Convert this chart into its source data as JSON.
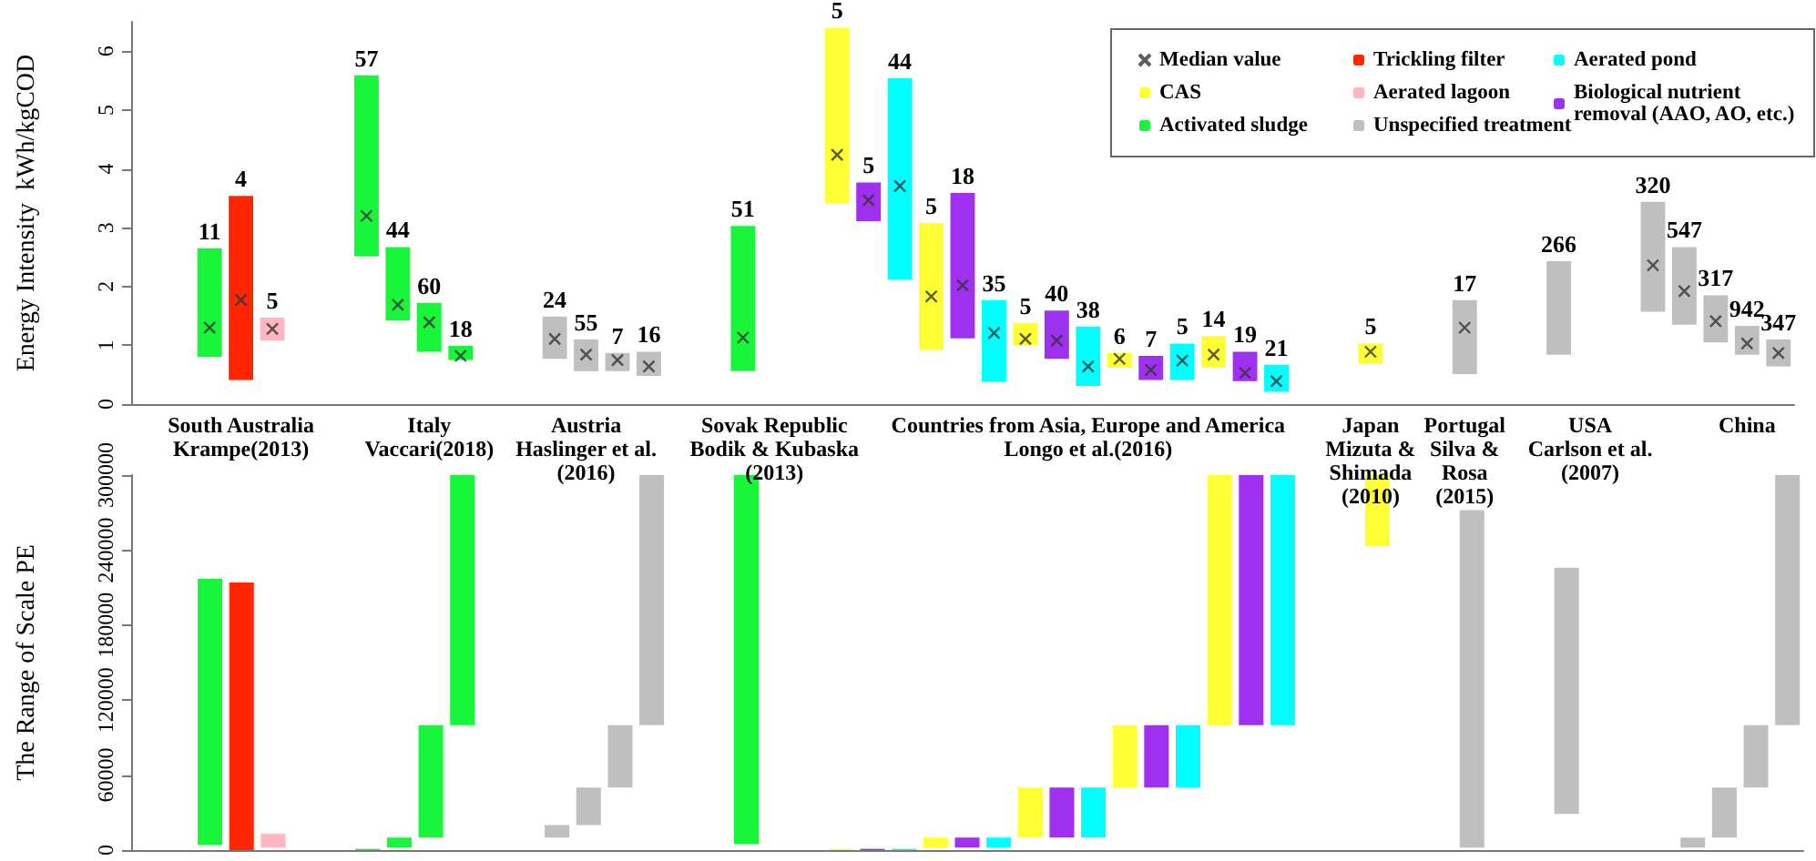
{
  "chart_data": [
    {
      "type": "bar",
      "ylabel": "Energy Intensity  kWh/kgCOD",
      "ylim": [
        0,
        6.5
      ],
      "yticks": [
        0,
        1,
        2,
        3,
        4,
        5,
        6
      ],
      "grid": false,
      "legend": "top right",
      "annotations": [
        "11",
        "4",
        "5",
        "57",
        "44",
        "60",
        "18",
        "24",
        "55",
        "7",
        "16",
        "51",
        "5",
        "5",
        "44",
        "5",
        "18",
        "35",
        "5",
        "40",
        "38",
        "6",
        "7",
        "5",
        "14",
        "19",
        "21",
        "5",
        "17",
        "266",
        "320",
        "547",
        "317",
        "942",
        "347"
      ],
      "categories": [
        null,
        null,
        null,
        "South Australia\nKrampe(2013)",
        null,
        null,
        null,
        null,
        null,
        "Italy\nVaccari(2018)",
        null,
        null,
        null,
        null,
        "Austria\nHaslinger et al.\n(2016)",
        null,
        null,
        null,
        null,
        null,
        "Sovak Republic\nBodik & Kubaska\n(2013)",
        null,
        null,
        null,
        null,
        null,
        null,
        null,
        null,
        null,
        "Countries from Asia, Europe and America\nLongo et al.(2016)",
        null,
        null,
        null,
        null,
        null,
        null,
        null,
        null,
        "Japan\nMizuta &\nShimada\n(2010)",
        null,
        null,
        "Portugal\nSilva &\nRosa\n(2015)",
        null,
        null,
        null,
        "USA\nCarlson et al.\n(2007)",
        null,
        null,
        null,
        null,
        "China",
        null
      ],
      "series": [
        {
          "name": "Median value",
          "type": "scatter",
          "marker": "cross",
          "color": "#333333",
          "values": [
            null,
            null,
            1.3,
            1.77,
            1.28,
            null,
            null,
            3.2,
            1.69,
            1.39,
            0.82,
            null,
            null,
            1.11,
            0.84,
            0.75,
            0.64,
            null,
            null,
            1.13,
            null,
            null,
            4.24,
            3.47,
            3.71,
            1.83,
            2.02,
            1.21,
            1.11,
            1.08,
            0.64,
            0.77,
            0.58,
            0.74,
            0.84,
            0.53,
            0.39,
            null,
            null,
            0.89,
            null,
            null,
            1.3,
            null,
            null,
            null,
            null,
            null,
            2.36,
            1.92,
            1.41,
            1.03,
            0.87
          ]
        },
        {
          "name": "Trickling filter",
          "color": "#ff2600",
          "values": [
            null,
            null,
            null,
            3.13,
            null,
            null,
            null,
            null,
            null,
            null,
            null,
            null,
            null,
            null,
            null,
            null,
            null,
            null,
            null,
            null,
            null,
            null,
            null,
            null,
            null,
            null,
            null,
            null,
            null,
            null,
            null,
            null,
            null,
            null,
            null,
            null,
            null,
            null,
            null,
            null,
            null,
            null,
            null,
            null,
            null,
            null,
            null,
            null,
            null,
            null,
            null,
            null,
            null
          ],
          "base": [
            null,
            null,
            null,
            0.41,
            null,
            null,
            null,
            null,
            null,
            null,
            null,
            null,
            null,
            null,
            null,
            null,
            null,
            null,
            null,
            null,
            null,
            null,
            null,
            null,
            null,
            null,
            null,
            null,
            null,
            null,
            null,
            null,
            null,
            null,
            null,
            null,
            null,
            null,
            null,
            null,
            null,
            null,
            null,
            null,
            null,
            null,
            null,
            null,
            null,
            null,
            null,
            null,
            null
          ]
        },
        {
          "name": "Aerated pond",
          "color": "#00ffff",
          "values": [
            null,
            null,
            null,
            null,
            null,
            null,
            null,
            null,
            null,
            null,
            null,
            null,
            null,
            null,
            null,
            null,
            null,
            null,
            null,
            null,
            null,
            null,
            null,
            null,
            3.42,
            null,
            null,
            1.39,
            null,
            null,
            1.01,
            null,
            null,
            0.62,
            null,
            null,
            0.46,
            null,
            null,
            null,
            null,
            null,
            null,
            null,
            null,
            null,
            null,
            null,
            null,
            null,
            null,
            null,
            null
          ],
          "base": [
            null,
            null,
            null,
            null,
            null,
            null,
            null,
            null,
            null,
            null,
            null,
            null,
            null,
            null,
            null,
            null,
            null,
            null,
            null,
            null,
            null,
            null,
            null,
            null,
            2.12,
            null,
            null,
            0.38,
            null,
            null,
            0.31,
            null,
            null,
            0.41,
            null,
            null,
            0.21,
            null,
            null,
            null,
            null,
            null,
            null,
            null,
            null,
            null,
            null,
            null,
            null,
            null,
            null,
            null,
            null
          ]
        },
        {
          "name": "CAS",
          "color": "#ffff33",
          "values": [
            null,
            null,
            null,
            null,
            null,
            null,
            null,
            null,
            null,
            null,
            null,
            null,
            null,
            null,
            null,
            null,
            null,
            null,
            null,
            null,
            null,
            null,
            2.98,
            null,
            null,
            2.16,
            null,
            null,
            0.38,
            null,
            null,
            0.25,
            null,
            null,
            0.54,
            null,
            null,
            null,
            null,
            0.34,
            null,
            null,
            null,
            null,
            null,
            null,
            null,
            null,
            null,
            null,
            null,
            null,
            null
          ],
          "base": [
            null,
            null,
            null,
            null,
            null,
            null,
            null,
            null,
            null,
            null,
            null,
            null,
            null,
            null,
            null,
            null,
            null,
            null,
            null,
            null,
            null,
            null,
            3.42,
            null,
            null,
            0.92,
            null,
            null,
            1.0,
            null,
            null,
            0.62,
            null,
            null,
            0.62,
            null,
            null,
            null,
            null,
            0.69,
            null,
            null,
            null,
            null,
            null,
            null,
            null,
            null,
            null,
            null,
            null,
            null,
            null
          ]
        },
        {
          "name": "Aerated lagoon",
          "color": "#ffb6c1",
          "values": [
            null,
            null,
            null,
            null,
            0.39,
            null,
            null,
            null,
            null,
            null,
            null,
            null,
            null,
            null,
            null,
            null,
            null,
            null,
            null,
            null,
            null,
            null,
            null,
            null,
            null,
            null,
            null,
            null,
            null,
            null,
            null,
            null,
            null,
            null,
            null,
            null,
            null,
            null,
            null,
            null,
            null,
            null,
            null,
            null,
            null,
            null,
            null,
            null,
            null,
            null,
            null,
            null,
            null
          ],
          "base": [
            null,
            null,
            null,
            null,
            1.08,
            null,
            null,
            null,
            null,
            null,
            null,
            null,
            null,
            null,
            null,
            null,
            null,
            null,
            null,
            null,
            null,
            null,
            null,
            null,
            null,
            null,
            null,
            null,
            null,
            null,
            null,
            null,
            null,
            null,
            null,
            null,
            null,
            null,
            null,
            null,
            null,
            null,
            null,
            null,
            null,
            null,
            null,
            null,
            null,
            null,
            null,
            null,
            null
          ]
        },
        {
          "name": "Biological nutrient removal (AAO, AO, etc.)",
          "color": "#a030f0",
          "values": [
            null,
            null,
            null,
            null,
            null,
            null,
            null,
            null,
            null,
            null,
            null,
            null,
            null,
            null,
            null,
            null,
            null,
            null,
            null,
            null,
            null,
            null,
            null,
            0.66,
            null,
            null,
            2.47,
            null,
            null,
            0.82,
            null,
            null,
            0.41,
            null,
            null,
            0.5,
            null,
            null,
            null,
            null,
            null,
            null,
            null,
            null,
            null,
            null,
            null,
            null,
            null,
            null,
            null,
            null,
            null
          ],
          "base": [
            null,
            null,
            null,
            null,
            null,
            null,
            null,
            null,
            null,
            null,
            null,
            null,
            null,
            null,
            null,
            null,
            null,
            null,
            null,
            null,
            null,
            null,
            null,
            3.11,
            null,
            null,
            1.12,
            null,
            null,
            0.77,
            null,
            null,
            0.41,
            null,
            null,
            0.39,
            null,
            null,
            null,
            null,
            null,
            null,
            null,
            null,
            null,
            null,
            null,
            null,
            null,
            null,
            null,
            null,
            null
          ]
        },
        {
          "name": "Activated sludge",
          "color": "#19f53a",
          "values": [
            null,
            null,
            1.85,
            null,
            null,
            null,
            null,
            3.08,
            1.25,
            0.83,
            0.24,
            null,
            null,
            null,
            null,
            null,
            null,
            null,
            null,
            2.47,
            null,
            null,
            null,
            null,
            null,
            null,
            null,
            null,
            null,
            null,
            null,
            null,
            null,
            null,
            null,
            null,
            null,
            null,
            null,
            null,
            null,
            null,
            null,
            null,
            null,
            null,
            null,
            null,
            null,
            null,
            null,
            null,
            null
          ],
          "base": [
            null,
            null,
            0.8,
            null,
            null,
            null,
            null,
            2.51,
            1.42,
            0.89,
            0.75,
            null,
            null,
            null,
            null,
            null,
            null,
            null,
            null,
            0.56,
            null,
            null,
            null,
            null,
            null,
            null,
            null,
            null,
            null,
            null,
            null,
            null,
            null,
            null,
            null,
            null,
            null,
            null,
            null,
            null,
            null,
            null,
            null,
            null,
            null,
            null,
            null,
            null,
            null,
            null,
            null,
            null,
            null
          ]
        },
        {
          "name": "Unspecified treatment",
          "color": "#bfbfbf",
          "values": [
            null,
            null,
            null,
            null,
            null,
            null,
            null,
            null,
            null,
            null,
            null,
            null,
            null,
            0.72,
            0.54,
            0.31,
            0.41,
            null,
            null,
            null,
            null,
            null,
            null,
            null,
            null,
            null,
            null,
            null,
            null,
            null,
            null,
            null,
            null,
            null,
            null,
            null,
            null,
            null,
            null,
            null,
            null,
            null,
            1.26,
            null,
            null,
            1.59,
            null,
            null,
            1.87,
            1.32,
            0.8,
            0.49,
            0.46
          ],
          "base": [
            null,
            null,
            null,
            null,
            null,
            null,
            null,
            null,
            null,
            null,
            null,
            null,
            null,
            0.77,
            0.56,
            0.56,
            0.48,
            null,
            null,
            null,
            null,
            null,
            null,
            null,
            null,
            null,
            null,
            null,
            null,
            null,
            null,
            null,
            null,
            null,
            null,
            null,
            null,
            null,
            null,
            null,
            null,
            null,
            0.51,
            null,
            null,
            0.84,
            null,
            null,
            1.57,
            1.35,
            1.05,
            0.84,
            0.64
          ]
        }
      ]
    },
    {
      "type": "bar",
      "ylabel": "The Range of Scale PE",
      "ylim": [
        0,
        300000
      ],
      "yticks": [
        0,
        60000,
        120000,
        180000,
        240000,
        300000
      ],
      "grid": false,
      "tick_labels": "y",
      "categories": [
        null,
        null,
        null,
        null,
        null,
        null,
        null,
        null,
        null,
        null,
        null,
        null,
        null,
        null,
        null,
        null,
        null,
        null,
        null,
        null,
        null,
        null,
        null,
        null,
        null,
        null,
        null,
        null,
        null,
        null,
        null,
        null,
        null,
        null,
        null,
        null,
        null,
        null,
        null,
        null,
        null,
        null,
        null,
        null,
        null,
        null,
        null,
        null,
        null,
        null,
        null,
        null,
        null
      ],
      "series": [
        {
          "color": "#ff2600",
          "values": [
            null,
            null,
            null,
            214000,
            null,
            null,
            null,
            null,
            null,
            null,
            null,
            null,
            null,
            null,
            null,
            null,
            null,
            null,
            null,
            null,
            null,
            null,
            null,
            null,
            null,
            null,
            null,
            null,
            null,
            null,
            null,
            null,
            null,
            null,
            null,
            null,
            null,
            null,
            null,
            null,
            null,
            null,
            null,
            null,
            null,
            null,
            null,
            null,
            null,
            null,
            null,
            null,
            null
          ],
          "base": [
            null,
            null,
            null,
            0,
            null,
            null,
            null,
            null,
            null,
            null,
            null,
            null,
            null,
            null,
            null,
            null,
            null,
            null,
            null,
            null,
            null,
            null,
            null,
            null,
            null,
            null,
            null,
            null,
            null,
            null,
            null,
            null,
            null,
            null,
            null,
            null,
            null,
            null,
            null,
            null,
            null,
            null,
            null,
            null,
            null,
            null,
            null,
            null,
            null,
            null,
            null,
            null,
            null
          ]
        },
        {
          "color": "#00ffff",
          "values": [
            null,
            null,
            null,
            null,
            null,
            null,
            null,
            null,
            null,
            null,
            null,
            null,
            null,
            null,
            null,
            null,
            null,
            null,
            null,
            null,
            null,
            null,
            null,
            null,
            1000,
            null,
            null,
            8000,
            null,
            null,
            40000,
            null,
            null,
            50000,
            null,
            null,
            200000,
            null,
            null,
            null,
            null,
            null,
            null,
            null,
            null,
            null,
            null,
            null,
            null,
            null,
            null,
            null,
            null
          ],
          "base": [
            null,
            null,
            null,
            null,
            null,
            null,
            null,
            null,
            null,
            null,
            null,
            null,
            null,
            null,
            null,
            null,
            null,
            null,
            null,
            null,
            null,
            null,
            null,
            null,
            0,
            null,
            null,
            2000,
            null,
            null,
            10000,
            null,
            null,
            50000,
            null,
            null,
            100000,
            null,
            null,
            null,
            null,
            null,
            null,
            null,
            null,
            null,
            null,
            null,
            null,
            null,
            null,
            null,
            null
          ]
        },
        {
          "color": "#ffff33",
          "values": [
            null,
            null,
            null,
            null,
            null,
            null,
            null,
            null,
            null,
            null,
            null,
            null,
            null,
            null,
            null,
            null,
            null,
            null,
            null,
            null,
            null,
            null,
            1000,
            null,
            null,
            8000,
            null,
            null,
            40000,
            null,
            null,
            50000,
            null,
            null,
            200000,
            null,
            null,
            null,
            null,
            57000,
            null,
            null,
            null,
            null,
            null,
            null,
            null,
            null,
            null,
            null,
            null,
            null,
            null
          ],
          "base": [
            null,
            null,
            null,
            null,
            null,
            null,
            null,
            null,
            null,
            null,
            null,
            null,
            null,
            null,
            null,
            null,
            null,
            null,
            null,
            null,
            null,
            null,
            0,
            null,
            null,
            2000,
            null,
            null,
            10000,
            null,
            null,
            50000,
            null,
            null,
            100000,
            null,
            null,
            null,
            null,
            243000,
            null,
            null,
            null,
            null,
            null,
            null,
            null,
            null,
            null,
            null,
            null,
            null,
            null
          ]
        },
        {
          "color": "#ffb6c1",
          "values": [
            null,
            null,
            null,
            null,
            11000,
            null,
            null,
            null,
            null,
            null,
            null,
            null,
            null,
            null,
            null,
            null,
            null,
            null,
            null,
            null,
            null,
            null,
            null,
            null,
            null,
            null,
            null,
            null,
            null,
            null,
            null,
            null,
            null,
            null,
            null,
            null,
            null,
            null,
            null,
            null,
            null,
            null,
            null,
            null,
            null,
            null,
            null,
            null,
            null,
            null,
            null,
            null,
            null
          ],
          "base": [
            null,
            null,
            null,
            null,
            2000,
            null,
            null,
            null,
            null,
            null,
            null,
            null,
            null,
            null,
            null,
            null,
            null,
            null,
            null,
            null,
            null,
            null,
            null,
            null,
            null,
            null,
            null,
            null,
            null,
            null,
            null,
            null,
            null,
            null,
            null,
            null,
            null,
            null,
            null,
            null,
            null,
            null,
            null,
            null,
            null,
            null,
            null,
            null,
            null,
            null,
            null,
            null,
            null
          ]
        },
        {
          "color": "#a030f0",
          "values": [
            null,
            null,
            null,
            null,
            null,
            null,
            null,
            null,
            null,
            null,
            null,
            null,
            null,
            null,
            null,
            null,
            null,
            null,
            null,
            null,
            null,
            null,
            null,
            1000,
            null,
            null,
            8000,
            null,
            null,
            40000,
            null,
            null,
            50000,
            null,
            null,
            200000,
            null,
            null,
            null,
            null,
            null,
            null,
            null,
            null,
            null,
            null,
            null,
            null,
            null,
            null,
            null,
            null,
            null
          ],
          "base": [
            null,
            null,
            null,
            null,
            null,
            null,
            null,
            null,
            null,
            null,
            null,
            null,
            null,
            null,
            null,
            null,
            null,
            null,
            null,
            null,
            null,
            null,
            null,
            0,
            null,
            null,
            2000,
            null,
            null,
            10000,
            null,
            null,
            50000,
            null,
            null,
            100000,
            null,
            null,
            null,
            null,
            null,
            null,
            null,
            null,
            null,
            null,
            null,
            null,
            null,
            null,
            null,
            null,
            null
          ]
        },
        {
          "color": "#19f53a",
          "values": [
            null,
            null,
            213000,
            null,
            null,
            null,
            null,
            1000,
            8000,
            90000,
            200000,
            null,
            null,
            null,
            null,
            null,
            null,
            null,
            null,
            295000,
            null,
            null,
            null,
            null,
            null,
            null,
            null,
            null,
            null,
            null,
            null,
            null,
            null,
            null,
            null,
            null,
            null,
            null,
            null,
            null,
            null,
            null,
            null,
            null,
            null,
            null,
            null,
            null,
            null,
            null,
            null,
            null,
            null
          ],
          "base": [
            null,
            null,
            4000,
            null,
            null,
            null,
            null,
            0,
            2000,
            10000,
            100000,
            null,
            null,
            null,
            null,
            null,
            null,
            null,
            null,
            5000,
            null,
            null,
            null,
            null,
            null,
            null,
            null,
            null,
            null,
            null,
            null,
            null,
            null,
            null,
            null,
            null,
            null,
            null,
            null,
            null,
            null,
            null,
            null,
            null,
            null,
            null,
            null,
            null,
            null,
            null,
            null,
            null,
            null
          ]
        },
        {
          "color": "#bfbfbf",
          "values": [
            null,
            null,
            null,
            null,
            null,
            null,
            null,
            null,
            null,
            null,
            null,
            null,
            null,
            10000,
            30000,
            50000,
            200000,
            null,
            null,
            null,
            null,
            null,
            null,
            null,
            null,
            null,
            null,
            null,
            null,
            null,
            null,
            null,
            null,
            null,
            null,
            null,
            null,
            null,
            null,
            null,
            null,
            null,
            270000,
            null,
            null,
            197000,
            null,
            null,
            null,
            8000,
            40000,
            50000,
            200000
          ],
          "base": [
            null,
            null,
            null,
            null,
            null,
            null,
            null,
            null,
            null,
            null,
            null,
            null,
            null,
            10000,
            20000,
            50000,
            100000,
            null,
            null,
            null,
            null,
            null,
            null,
            null,
            null,
            null,
            null,
            null,
            null,
            null,
            null,
            null,
            null,
            null,
            null,
            null,
            null,
            null,
            null,
            null,
            null,
            null,
            2000,
            null,
            null,
            29000,
            null,
            null,
            null,
            2000,
            10000,
            50000,
            100000
          ]
        }
      ]
    }
  ]
}
